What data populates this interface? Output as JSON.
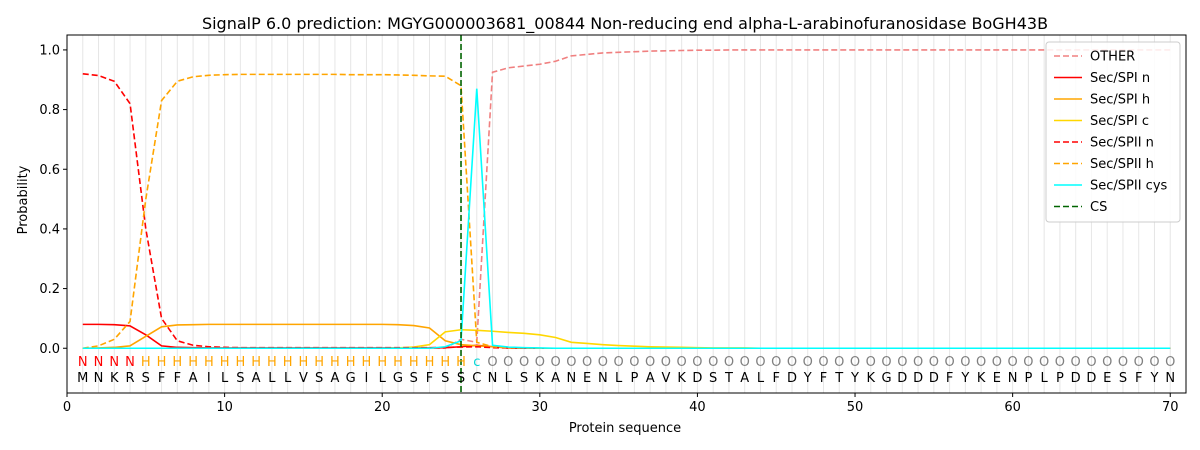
{
  "chart_data": {
    "type": "line",
    "title": "SignalP 6.0 prediction: MGYG000003681_00844 Non-reducing end alpha-L-arabinofuranosidase BoGH43B",
    "xlabel": "Protein sequence",
    "ylabel": "Probability",
    "xlim": [
      0,
      71
    ],
    "ylim": [
      -0.15,
      1.05
    ],
    "x_ticks": [
      0,
      10,
      20,
      30,
      40,
      50,
      60,
      70
    ],
    "y_ticks": [
      0.0,
      0.2,
      0.4,
      0.6,
      0.8,
      1.0
    ],
    "x_tick_labels": [
      "0",
      "10",
      "20",
      "30",
      "40",
      "50",
      "60",
      "70"
    ],
    "y_tick_labels": [
      "0.0",
      "0.2",
      "0.4",
      "0.6",
      "0.8",
      "1.0"
    ],
    "grid": "vertical lines at each residue",
    "legend_position": "top-right",
    "sequence": "MNKRSFFAILSALLVSAGILGSFSSCNLSKANENLPAVKDSTALFDYFTYKGDDDFYKENPLPDDESFYN",
    "labels": "NNNNHHHHHHHHHHHHHHHHHHHHHcOOOOOOOOOOOOOOOOOOOOOOOOOOOOOOOOOOOOOOOOOOOO",
    "label_colors": {
      "N": "#ff0000",
      "H": "#ffa500",
      "c": "#00d5d5",
      "O": "#808080"
    },
    "cs_position": 25,
    "series": [
      {
        "name": "OTHER",
        "color": "#f08080",
        "dash": "dashed",
        "values": [
          0.0,
          0.0,
          0.0,
          0.0,
          0.0,
          0.0,
          0.0,
          0.0,
          0.0,
          0.0,
          0.0,
          0.0,
          0.0,
          0.0,
          0.0,
          0.0,
          0.0,
          0.0,
          0.0,
          0.0,
          0.0,
          0.0,
          0.0,
          0.0,
          0.03,
          0.02,
          0.925,
          0.94,
          0.946,
          0.952,
          0.962,
          0.98,
          0.985,
          0.99,
          0.992,
          0.994,
          0.996,
          0.997,
          0.998,
          0.999,
          0.999,
          1.0,
          1.0,
          1.0,
          1.0,
          1.0,
          1.0,
          1.0,
          1.0,
          1.0,
          1.0,
          1.0,
          1.0,
          1.0,
          1.0,
          1.0,
          1.0,
          1.0,
          1.0,
          1.0,
          1.0,
          1.0,
          1.0,
          1.0,
          1.0,
          1.0,
          1.0,
          1.0,
          1.0,
          1.0
        ]
      },
      {
        "name": "Sec/SPI n",
        "color": "#ff0000",
        "dash": "solid",
        "values": [
          0.08,
          0.08,
          0.079,
          0.075,
          0.045,
          0.008,
          0.003,
          0.002,
          0.001,
          0.001,
          0.001,
          0.001,
          0.001,
          0.001,
          0.001,
          0.001,
          0.001,
          0.001,
          0.001,
          0.001,
          0.001,
          0.001,
          0.001,
          0.002,
          0.005,
          0.01,
          0.005,
          0.001,
          0.0,
          0.0,
          0.0,
          0.0,
          0.0,
          0.0,
          0.0,
          0.0,
          0.0,
          0.0,
          0.0,
          0.0,
          0.0,
          0.0,
          0.0,
          0.0,
          0.0,
          0.0,
          0.0,
          0.0,
          0.0,
          0.0,
          0.0,
          0.0,
          0.0,
          0.0,
          0.0,
          0.0,
          0.0,
          0.0,
          0.0,
          0.0,
          0.0,
          0.0,
          0.0,
          0.0,
          0.0,
          0.0,
          0.0,
          0.0,
          0.0,
          0.0
        ]
      },
      {
        "name": "Sec/SPI h",
        "color": "#ffa500",
        "dash": "solid",
        "values": [
          0.0,
          0.001,
          0.003,
          0.008,
          0.04,
          0.072,
          0.078,
          0.079,
          0.08,
          0.08,
          0.08,
          0.08,
          0.08,
          0.08,
          0.08,
          0.08,
          0.08,
          0.08,
          0.08,
          0.08,
          0.079,
          0.076,
          0.068,
          0.025,
          0.012,
          0.008,
          0.005,
          0.002,
          0.001,
          0.0,
          0.0,
          0.0,
          0.0,
          0.0,
          0.0,
          0.0,
          0.0,
          0.0,
          0.0,
          0.0,
          0.0,
          0.0,
          0.0,
          0.0,
          0.0,
          0.0,
          0.0,
          0.0,
          0.0,
          0.0,
          0.0,
          0.0,
          0.0,
          0.0,
          0.0,
          0.0,
          0.0,
          0.0,
          0.0,
          0.0,
          0.0,
          0.0,
          0.0,
          0.0,
          0.0,
          0.0,
          0.0,
          0.0,
          0.0,
          0.0
        ]
      },
      {
        "name": "Sec/SPI c",
        "color": "#ffd700",
        "dash": "solid",
        "values": [
          0.0,
          0.0,
          0.0,
          0.0,
          0.0,
          0.0,
          0.0,
          0.0,
          0.0,
          0.0,
          0.0,
          0.0,
          0.0,
          0.0,
          0.0,
          0.0,
          0.0,
          0.0,
          0.0,
          0.0,
          0.001,
          0.004,
          0.012,
          0.055,
          0.062,
          0.06,
          0.057,
          0.053,
          0.05,
          0.045,
          0.036,
          0.02,
          0.016,
          0.012,
          0.009,
          0.007,
          0.005,
          0.004,
          0.003,
          0.002,
          0.001,
          0.001,
          0.001,
          0.0,
          0.0,
          0.0,
          0.0,
          0.0,
          0.0,
          0.0,
          0.0,
          0.0,
          0.0,
          0.0,
          0.0,
          0.0,
          0.0,
          0.0,
          0.0,
          0.0,
          0.0,
          0.0,
          0.0,
          0.0,
          0.0,
          0.0,
          0.0,
          0.0,
          0.0,
          0.0
        ]
      },
      {
        "name": "Sec/SPII n",
        "color": "#ff0000",
        "dash": "dashed",
        "values": [
          0.92,
          0.914,
          0.895,
          0.82,
          0.4,
          0.1,
          0.025,
          0.01,
          0.005,
          0.003,
          0.002,
          0.002,
          0.002,
          0.002,
          0.002,
          0.002,
          0.002,
          0.002,
          0.002,
          0.002,
          0.002,
          0.002,
          0.002,
          0.003,
          0.004,
          0.005,
          0.002,
          0.001,
          0.0,
          0.0,
          0.0,
          0.0,
          0.0,
          0.0,
          0.0,
          0.0,
          0.0,
          0.0,
          0.0,
          0.0,
          0.0,
          0.0,
          0.0,
          0.0,
          0.0,
          0.0,
          0.0,
          0.0,
          0.0,
          0.0,
          0.0,
          0.0,
          0.0,
          0.0,
          0.0,
          0.0,
          0.0,
          0.0,
          0.0,
          0.0,
          0.0,
          0.0,
          0.0,
          0.0,
          0.0,
          0.0,
          0.0,
          0.0,
          0.0,
          0.0
        ]
      },
      {
        "name": "Sec/SPII h",
        "color": "#ffa500",
        "dash": "dashed",
        "values": [
          0.0,
          0.008,
          0.03,
          0.09,
          0.5,
          0.83,
          0.895,
          0.91,
          0.915,
          0.917,
          0.918,
          0.918,
          0.918,
          0.918,
          0.918,
          0.918,
          0.918,
          0.917,
          0.917,
          0.917,
          0.916,
          0.915,
          0.913,
          0.912,
          0.88,
          0.02,
          0.005,
          0.002,
          0.001,
          0.0,
          0.0,
          0.0,
          0.0,
          0.0,
          0.0,
          0.0,
          0.0,
          0.0,
          0.0,
          0.0,
          0.0,
          0.0,
          0.0,
          0.0,
          0.0,
          0.0,
          0.0,
          0.0,
          0.0,
          0.0,
          0.0,
          0.0,
          0.0,
          0.0,
          0.0,
          0.0,
          0.0,
          0.0,
          0.0,
          0.0,
          0.0,
          0.0,
          0.0,
          0.0,
          0.0,
          0.0,
          0.0,
          0.0,
          0.0,
          0.0
        ]
      },
      {
        "name": "Sec/SPII cys",
        "color": "#00ffff",
        "dash": "solid",
        "values": [
          0.0,
          0.0,
          0.0,
          0.0,
          0.0,
          0.0,
          0.0,
          0.0,
          0.0,
          0.0,
          0.0,
          0.0,
          0.0,
          0.0,
          0.0,
          0.0,
          0.0,
          0.0,
          0.0,
          0.0,
          0.0,
          0.0,
          0.0,
          0.005,
          0.025,
          0.87,
          0.01,
          0.004,
          0.002,
          0.001,
          0.0,
          0.0,
          0.0,
          0.0,
          0.0,
          0.0,
          0.0,
          0.0,
          0.0,
          0.0,
          0.0,
          0.0,
          0.0,
          0.0,
          0.0,
          0.0,
          0.0,
          0.0,
          0.0,
          0.0,
          0.0,
          0.0,
          0.0,
          0.0,
          0.0,
          0.0,
          0.0,
          0.0,
          0.0,
          0.0,
          0.0,
          0.0,
          0.0,
          0.0,
          0.0,
          0.0,
          0.0,
          0.0,
          0.0,
          0.0
        ]
      }
    ],
    "cs_series": {
      "name": "CS",
      "color": "#006400",
      "dash": "dashed"
    }
  }
}
